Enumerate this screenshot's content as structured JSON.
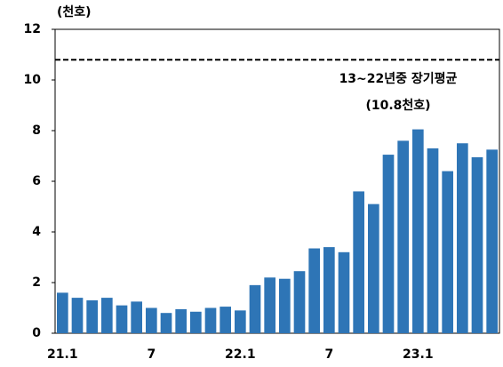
{
  "chart_data": {
    "type": "bar",
    "y_unit": "(천호)",
    "categories": [
      "21.1",
      null,
      null,
      null,
      null,
      null,
      "7",
      null,
      null,
      null,
      null,
      null,
      "22.1",
      null,
      null,
      null,
      null,
      null,
      "7",
      null,
      null,
      null,
      null,
      null,
      "23.1",
      null,
      null,
      null,
      null,
      null
    ],
    "values": [
      1.6,
      1.4,
      1.3,
      1.4,
      1.1,
      1.25,
      1.0,
      0.8,
      0.95,
      0.85,
      1.0,
      1.05,
      0.9,
      1.9,
      2.2,
      2.15,
      2.45,
      3.35,
      3.4,
      3.2,
      5.6,
      5.1,
      7.05,
      7.6,
      8.05,
      7.3,
      6.4,
      7.5,
      6.95,
      7.25
    ],
    "color": "#2e75b6",
    "ylim": [
      0,
      12
    ],
    "yticks": [
      0,
      2,
      4,
      6,
      8,
      10,
      12
    ],
    "reference_line": {
      "value": 10.8,
      "label_line1": "13~22년중 장기평균",
      "label_line2": "(10.8천호)"
    }
  }
}
